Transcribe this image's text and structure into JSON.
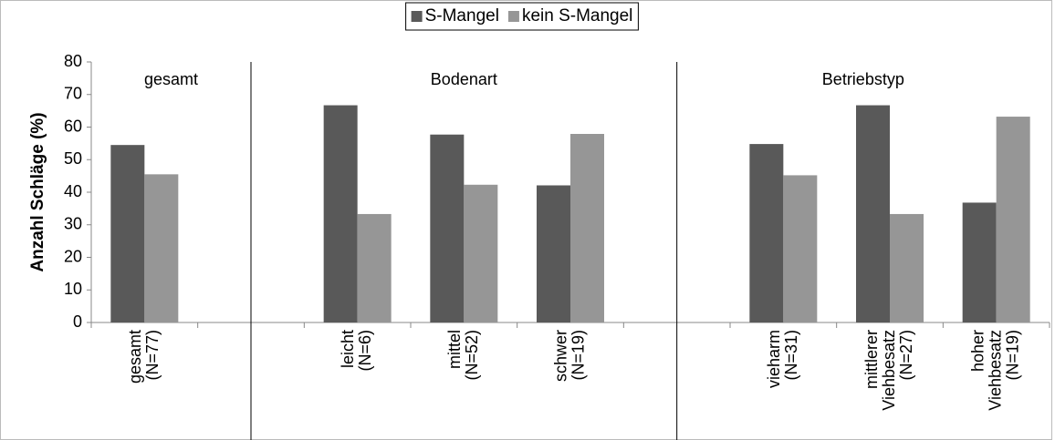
{
  "chart_data": {
    "type": "bar",
    "y_label": "Anzahl Schläge (%)",
    "group_labels": [
      "gesamt",
      "Bodenart",
      "Betriebstyp"
    ],
    "categories": [
      "gesamt\n(N=77)",
      null,
      "leicht\n(N=6)",
      "mittel\n(N=52)",
      "schwer\n(N=19)",
      null,
      "vieharm\n(N=31)",
      "mittlerer\nViehbesatz\n(N=27)",
      "hoher\nViehbesatz\n(N=19)"
    ],
    "series": [
      {
        "name": "S-Mangel",
        "color": "#595959",
        "values": [
          54.5,
          null,
          66.7,
          57.7,
          42.1,
          null,
          54.8,
          66.7,
          36.8
        ]
      },
      {
        "name": "kein S-Mangel",
        "color": "#969696",
        "values": [
          45.5,
          null,
          33.3,
          42.3,
          57.9,
          null,
          45.2,
          33.3,
          63.2
        ]
      }
    ],
    "ylim": [
      0,
      80
    ],
    "yticks": [
      0,
      10,
      20,
      30,
      40,
      50,
      60,
      70,
      80
    ],
    "legend": "top"
  }
}
